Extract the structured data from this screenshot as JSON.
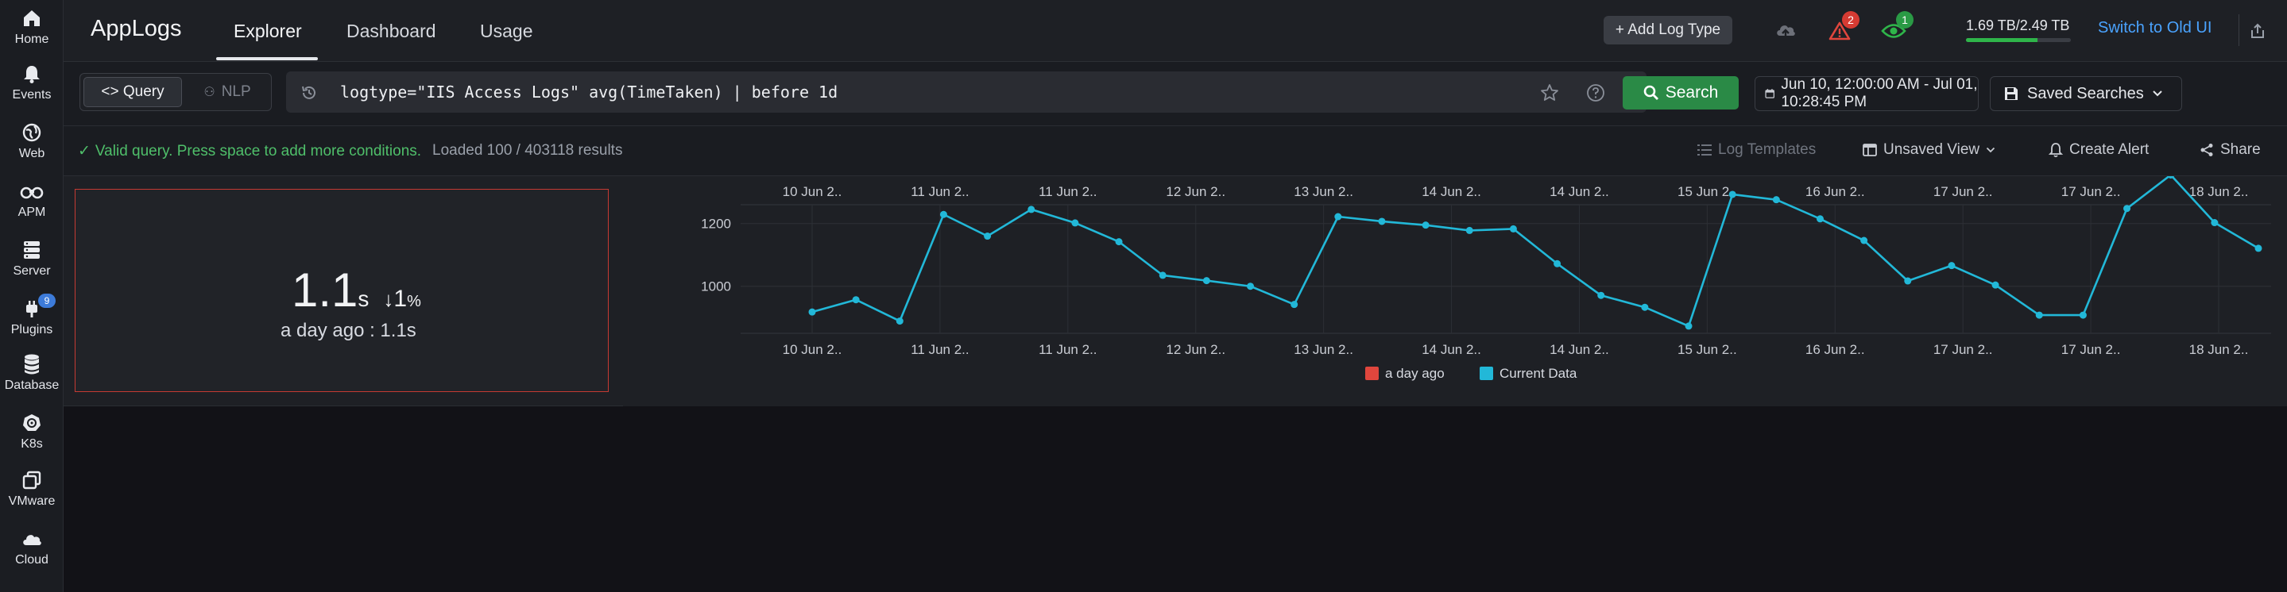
{
  "sidebar": {
    "items": [
      {
        "label": "Home",
        "icon": "home-icon"
      },
      {
        "label": "Events",
        "icon": "bell-icon"
      },
      {
        "label": "Web",
        "icon": "globe-icon"
      },
      {
        "label": "APM",
        "icon": "binoculars-icon"
      },
      {
        "label": "Server",
        "icon": "server-icon"
      },
      {
        "label": "Plugins",
        "icon": "plug-icon",
        "badge": "9"
      },
      {
        "label": "Database",
        "icon": "database-icon"
      },
      {
        "label": "K8s",
        "icon": "kubernetes-icon"
      },
      {
        "label": "VMware",
        "icon": "vmware-icon"
      },
      {
        "label": "Cloud",
        "icon": "cloud-icon"
      }
    ]
  },
  "header": {
    "brand": "AppLogs",
    "tabs": [
      {
        "label": "Explorer",
        "active": true
      },
      {
        "label": "Dashboard",
        "active": false
      },
      {
        "label": "Usage",
        "active": false
      }
    ],
    "add_log_type": "+ Add Log Type",
    "alerts_badge": "2",
    "watch_badge": "1",
    "storage": "1.69 TB/2.49 TB",
    "storage_used_fraction": 0.68,
    "switch_label": "Switch to Old UI",
    "accent": "#4aa3ff"
  },
  "query": {
    "mode_query": "<> Query",
    "mode_nlp": "NLP",
    "text": "logtype=\"IIS Access Logs\" avg(TimeTaken) | before 1d",
    "search_label": "Search",
    "date_range": "Jun 10, 12:00:00 AM - Jul 01, 10:28:45 PM",
    "saved_searches": "Saved Searches"
  },
  "status": {
    "valid_message": "Valid query. Press space to add more conditions.",
    "loaded": "Loaded 100 / 403118 results",
    "log_templates": "Log Templates",
    "unsaved_view": "Unsaved View",
    "create_alert": "Create Alert",
    "share": "Share"
  },
  "stat": {
    "value": "1.1",
    "unit": "s",
    "change_value": "1",
    "change_unit": "%",
    "compare": "a day ago : 1.1s"
  },
  "chart_data": {
    "type": "line",
    "x_tick_labels": [
      "10 Jun 2..",
      "11 Jun 2..",
      "11 Jun 2..",
      "12 Jun 2..",
      "13 Jun 2..",
      "14 Jun 2..",
      "14 Jun 2..",
      "15 Jun 2..",
      "16 Jun 2..",
      "17 Jun 2..",
      "17 Jun 2..",
      "18 Jun 2.."
    ],
    "y_tick_labels": [
      "1200",
      "1000"
    ],
    "ylim": [
      850,
      1260
    ],
    "series": [
      {
        "name": "a day ago",
        "color": "#e0463d",
        "values": []
      },
      {
        "name": "Current Data",
        "color": "#22b8d8",
        "values": [
          918,
          957,
          889,
          1229,
          1160,
          1245,
          1202,
          1142,
          1035,
          1018,
          1000,
          942,
          1222,
          1207,
          1195,
          1178,
          1183,
          1072,
          971,
          933,
          873,
          1293,
          1276,
          1215,
          1146,
          1017,
          1066,
          1004,
          908,
          908,
          1248,
          1355,
          1203,
          1121
        ]
      }
    ],
    "legend": "bottom-center",
    "grid": true
  }
}
